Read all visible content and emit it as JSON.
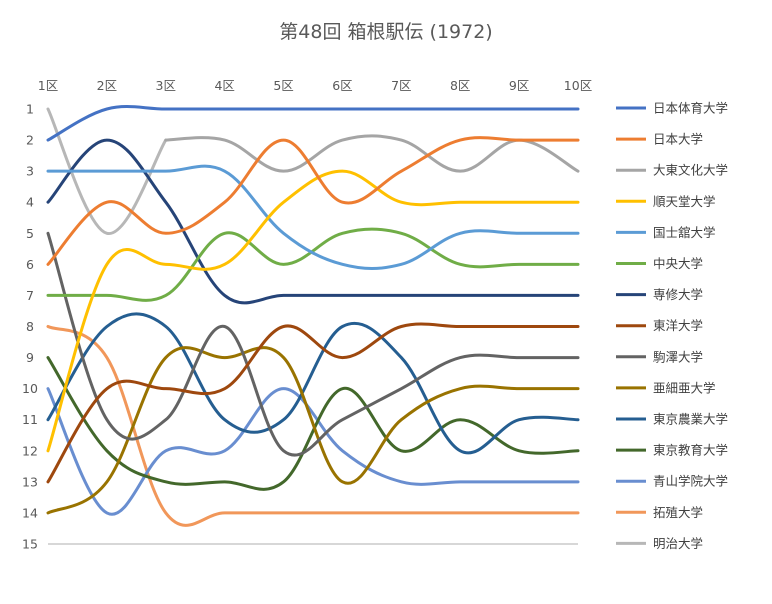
{
  "chart_data": {
    "type": "line",
    "title": "第48回 箱根駅伝 (1972)",
    "categories": [
      "1区",
      "2区",
      "3区",
      "4区",
      "5区",
      "6区",
      "7区",
      "8区",
      "9区",
      "10区"
    ],
    "y_ticks": [
      "1",
      "2",
      "3",
      "4",
      "5",
      "6",
      "7",
      "8",
      "9",
      "10",
      "11",
      "12",
      "13",
      "14",
      "15"
    ],
    "ylim": [
      1,
      15
    ],
    "y_inverted": true,
    "grid": false,
    "legend_position": "right",
    "series": [
      {
        "name": "日本体育大学",
        "color": "#4472C4",
        "values": [
          2,
          1,
          1,
          1,
          1,
          1,
          1,
          1,
          1,
          1
        ]
      },
      {
        "name": "日本大学",
        "color": "#ED7D31",
        "values": [
          6,
          4,
          5,
          4,
          2,
          4,
          3,
          2,
          2,
          2
        ]
      },
      {
        "name": "大東文化大学",
        "color": "#A5A5A5",
        "values": [
          null,
          null,
          2,
          2,
          3,
          2,
          2,
          3,
          2,
          3
        ]
      },
      {
        "name": "順天堂大学",
        "color": "#FFC000",
        "values": [
          12,
          6,
          6,
          6,
          4,
          3,
          4,
          4,
          4,
          4
        ]
      },
      {
        "name": "国士舘大学",
        "color": "#5B9BD5",
        "values": [
          3,
          3,
          3,
          3,
          5,
          6,
          6,
          5,
          5,
          5
        ]
      },
      {
        "name": "中央大学",
        "color": "#70AD47",
        "values": [
          7,
          7,
          7,
          5,
          6,
          5,
          5,
          6,
          6,
          6
        ]
      },
      {
        "name": "専修大学",
        "color": "#264478",
        "values": [
          4,
          2,
          4,
          7,
          7,
          7,
          7,
          7,
          7,
          7
        ]
      },
      {
        "name": "東洋大学",
        "color": "#9E480E",
        "values": [
          13,
          10,
          10,
          10,
          8,
          9,
          8,
          8,
          8,
          8
        ]
      },
      {
        "name": "駒澤大学",
        "color": "#636363",
        "values": [
          5,
          11,
          11,
          8,
          12,
          11,
          10,
          9,
          9,
          9
        ]
      },
      {
        "name": "亜細亜大学",
        "color": "#997300",
        "values": [
          14,
          13,
          9,
          9,
          9,
          13,
          11,
          10,
          10,
          10
        ]
      },
      {
        "name": "東京農業大学",
        "color": "#255E91",
        "values": [
          11,
          8,
          8,
          11,
          11,
          8,
          9,
          12,
          11,
          11
        ]
      },
      {
        "name": "東京教育大学",
        "color": "#43682B",
        "values": [
          9,
          12,
          13,
          13,
          13,
          10,
          12,
          11,
          12,
          12
        ]
      },
      {
        "name": "青山学院大学",
        "color": "#698ED0",
        "values": [
          10,
          14,
          12,
          12,
          10,
          12,
          13,
          13,
          13,
          13
        ]
      },
      {
        "name": "拓殖大学",
        "color": "#F1975A",
        "values": [
          8,
          9,
          14,
          14,
          14,
          14,
          14,
          14,
          14,
          14
        ]
      },
      {
        "name": "明治大学",
        "color": "#B7B7B7",
        "values": [
          1,
          5,
          2,
          null,
          null,
          null,
          null,
          null,
          null,
          null
        ]
      }
    ]
  }
}
